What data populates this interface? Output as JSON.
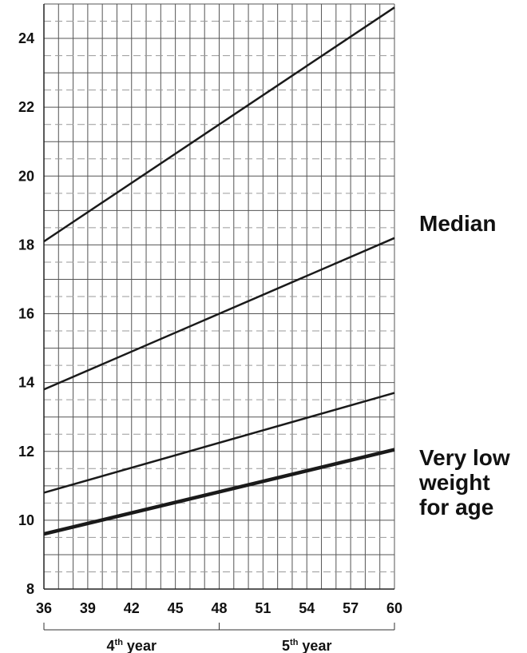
{
  "chart_data": {
    "type": "line",
    "title": "",
    "xlabel": "",
    "ylabel": "",
    "xlim": [
      36,
      60
    ],
    "ylim": [
      8,
      25
    ],
    "x_ticks": [
      "36",
      "39",
      "42",
      "45",
      "48",
      "51",
      "54",
      "57",
      "60"
    ],
    "y_ticks": [
      "8",
      "10",
      "12",
      "14",
      "16",
      "18",
      "20",
      "22",
      "24"
    ],
    "grid": true,
    "x_minor_step": 1,
    "y_minor_step": 0.5,
    "series": [
      {
        "x": [
          36,
          60
        ],
        "values": [
          18.1,
          24.9
        ],
        "emphasis": "normal"
      },
      {
        "x": [
          36,
          60
        ],
        "values": [
          13.8,
          18.2
        ],
        "emphasis": "normal"
      },
      {
        "x": [
          36,
          60
        ],
        "values": [
          10.8,
          13.7
        ],
        "emphasis": "normal"
      },
      {
        "x": [
          36,
          60
        ],
        "values": [
          9.6,
          12.05
        ],
        "emphasis": "bold"
      }
    ],
    "x_bands": [
      {
        "from": 36,
        "to": 48,
        "label_main": "4",
        "label_sup": "th",
        "label_tail": " year"
      },
      {
        "from": 48,
        "to": 60,
        "label_main": "5",
        "label_sup": "th",
        "label_tail": " year"
      }
    ],
    "annotations": [
      {
        "lines": [
          "Median"
        ],
        "y": 18.4
      },
      {
        "lines": [
          "Very low",
          "weight",
          "for age"
        ],
        "y": 11.6
      }
    ],
    "colors": {
      "line": "#1a1a1a",
      "grid": "#555555",
      "minor_grid": "#9a9a9a",
      "text": "#111111"
    }
  }
}
